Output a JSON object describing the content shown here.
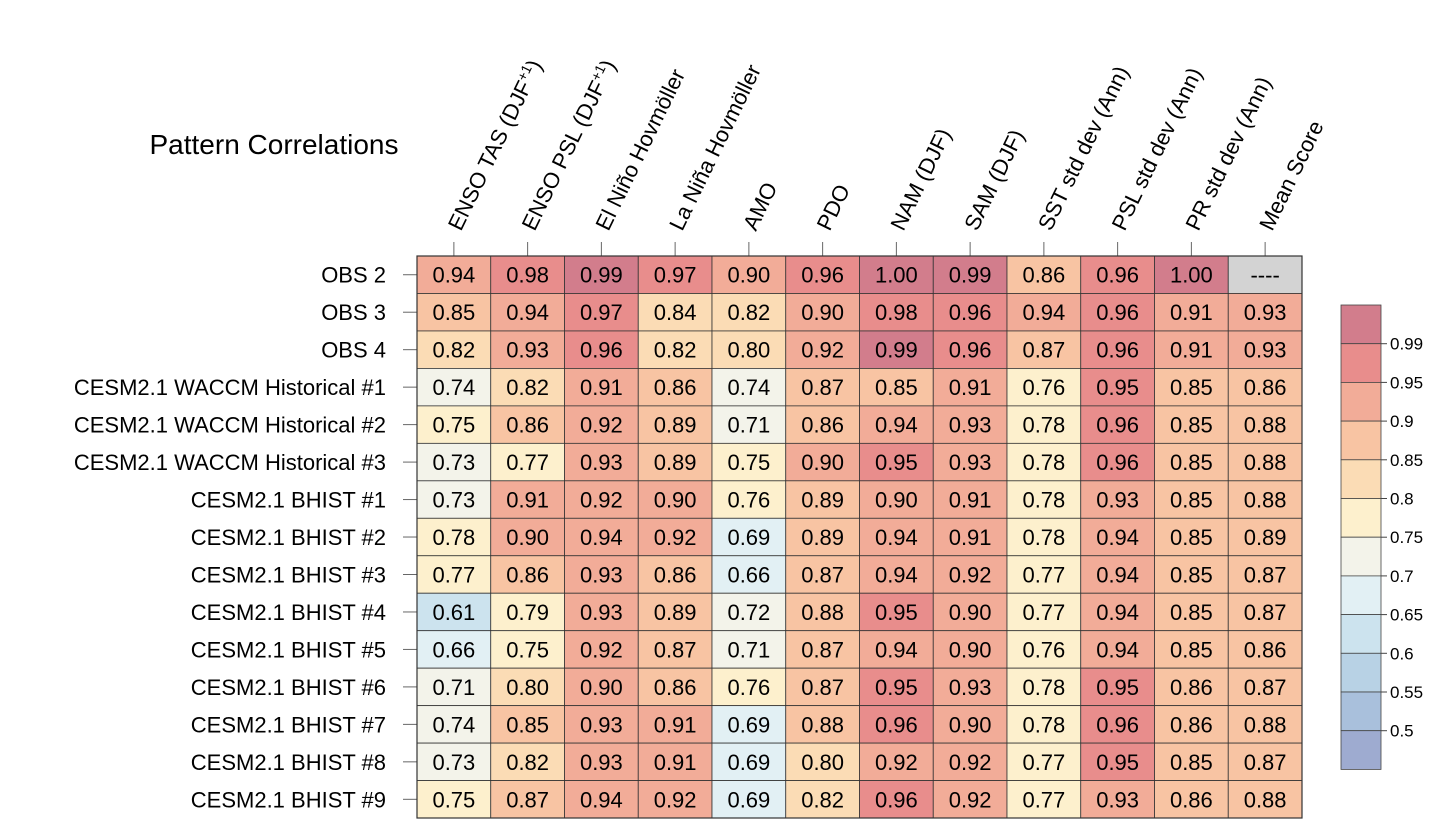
{
  "chart_data": {
    "type": "heatmap",
    "title": "Pattern Correlations",
    "columns": [
      "ENSO TAS (DJF+1)",
      "ENSO PSL (DJF+1)",
      "El Niño Hovmöller",
      "La Niña Hovmöller",
      "AMO",
      "PDO",
      "NAM (DJF)",
      "SAM (DJF)",
      "SST std dev (Ann)",
      "PSL std dev (Ann)",
      "PR std dev (Ann)",
      "Mean Score"
    ],
    "rows": [
      "OBS 2",
      "OBS 3",
      "OBS 4",
      "CESM2.1 WACCM Historical #1",
      "CESM2.1 WACCM Historical #2",
      "CESM2.1 WACCM Historical #3",
      "CESM2.1 BHIST #1",
      "CESM2.1 BHIST #2",
      "CESM2.1 BHIST #3",
      "CESM2.1 BHIST #4",
      "CESM2.1 BHIST #5",
      "CESM2.1 BHIST #6",
      "CESM2.1 BHIST #7",
      "CESM2.1 BHIST #8",
      "CESM2.1 BHIST #9"
    ],
    "values": [
      [
        "0.94",
        "0.98",
        "0.99",
        "0.97",
        "0.90",
        "0.96",
        "1.00",
        "0.99",
        "0.86",
        "0.96",
        "1.00",
        "----"
      ],
      [
        "0.85",
        "0.94",
        "0.97",
        "0.84",
        "0.82",
        "0.90",
        "0.98",
        "0.96",
        "0.94",
        "0.96",
        "0.91",
        "0.93"
      ],
      [
        "0.82",
        "0.93",
        "0.96",
        "0.82",
        "0.80",
        "0.92",
        "0.99",
        "0.96",
        "0.87",
        "0.96",
        "0.91",
        "0.93"
      ],
      [
        "0.74",
        "0.82",
        "0.91",
        "0.86",
        "0.74",
        "0.87",
        "0.85",
        "0.91",
        "0.76",
        "0.95",
        "0.85",
        "0.86"
      ],
      [
        "0.75",
        "0.86",
        "0.92",
        "0.89",
        "0.71",
        "0.86",
        "0.94",
        "0.93",
        "0.78",
        "0.96",
        "0.85",
        "0.88"
      ],
      [
        "0.73",
        "0.77",
        "0.93",
        "0.89",
        "0.75",
        "0.90",
        "0.95",
        "0.93",
        "0.78",
        "0.96",
        "0.85",
        "0.88"
      ],
      [
        "0.73",
        "0.91",
        "0.92",
        "0.90",
        "0.76",
        "0.89",
        "0.90",
        "0.91",
        "0.78",
        "0.93",
        "0.85",
        "0.88"
      ],
      [
        "0.78",
        "0.90",
        "0.94",
        "0.92",
        "0.69",
        "0.89",
        "0.94",
        "0.91",
        "0.78",
        "0.94",
        "0.85",
        "0.89"
      ],
      [
        "0.77",
        "0.86",
        "0.93",
        "0.86",
        "0.66",
        "0.87",
        "0.94",
        "0.92",
        "0.77",
        "0.94",
        "0.85",
        "0.87"
      ],
      [
        "0.61",
        "0.79",
        "0.93",
        "0.89",
        "0.72",
        "0.88",
        "0.95",
        "0.90",
        "0.77",
        "0.94",
        "0.85",
        "0.87"
      ],
      [
        "0.66",
        "0.75",
        "0.92",
        "0.87",
        "0.71",
        "0.87",
        "0.94",
        "0.90",
        "0.76",
        "0.94",
        "0.85",
        "0.86"
      ],
      [
        "0.71",
        "0.80",
        "0.90",
        "0.86",
        "0.76",
        "0.87",
        "0.95",
        "0.93",
        "0.78",
        "0.95",
        "0.86",
        "0.87"
      ],
      [
        "0.74",
        "0.85",
        "0.93",
        "0.91",
        "0.69",
        "0.88",
        "0.96",
        "0.90",
        "0.78",
        "0.96",
        "0.86",
        "0.88"
      ],
      [
        "0.73",
        "0.82",
        "0.93",
        "0.91",
        "0.69",
        "0.80",
        "0.92",
        "0.92",
        "0.77",
        "0.95",
        "0.85",
        "0.87"
      ],
      [
        "0.75",
        "0.87",
        "0.94",
        "0.92",
        "0.69",
        "0.82",
        "0.96",
        "0.92",
        "0.77",
        "0.93",
        "0.86",
        "0.88"
      ]
    ],
    "colorbar": {
      "labels": [
        "0.99",
        "0.95",
        "0.9",
        "0.85",
        "0.8",
        "0.75",
        "0.7",
        "0.65",
        "0.6",
        "0.55",
        "0.5"
      ],
      "thresholds": [
        0.5,
        0.55,
        0.6,
        0.65,
        0.7,
        0.75,
        0.8,
        0.85,
        0.9,
        0.95,
        0.99
      ],
      "colors": [
        "#9eabd0",
        "#a9c0dc",
        "#b8d2e5",
        "#cce3ee",
        "#e2f0f4",
        "#f3f3ea",
        "#fdf0cd",
        "#fbdcb5",
        "#f8c4a3",
        "#f2ac98",
        "#e88d8c",
        "#d27d8c"
      ],
      "missing_color": "#d3d3d3"
    }
  }
}
